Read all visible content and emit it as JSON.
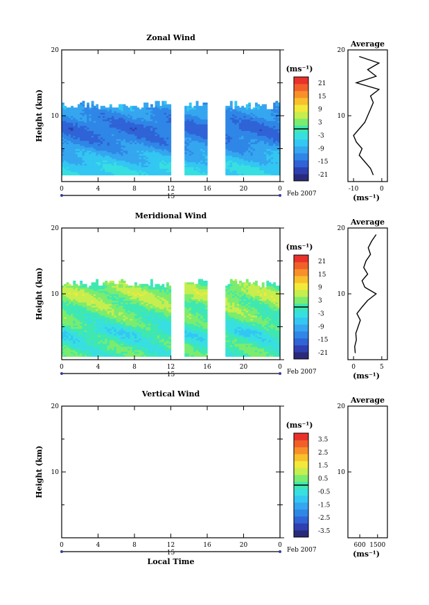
{
  "page": {
    "width": 619,
    "height": 873
  },
  "date_label": "Feb 2007",
  "day_label": "15",
  "xlabel": "Local Time",
  "ylabel": "Height (km)",
  "unit_label": "(ms⁻¹)",
  "profile_title": "Average",
  "palette": [
    "#2a2a7a",
    "#2e3fb0",
    "#2f63d6",
    "#2f86e6",
    "#35a6ef",
    "#33c7f2",
    "#38dfe0",
    "#3fe8b0",
    "#7bec6e",
    "#c6ee4e",
    "#f3e93a",
    "#f8c02c",
    "#f7902a",
    "#f2602a",
    "#e8322a"
  ],
  "chart_data": [
    {
      "type": "heatmap",
      "title": "Zonal Wind",
      "x_ticks": [
        "0",
        "4",
        "8",
        "12",
        "16",
        "20",
        "0"
      ],
      "xlim": [
        0,
        24
      ],
      "ylim": [
        0,
        20
      ],
      "y_ticks": [
        "10",
        "20"
      ],
      "colorbar": {
        "ticks": [
          "21",
          "15",
          "9",
          "3",
          "-3",
          "-9",
          "-15",
          "-21"
        ],
        "range": [
          -24,
          24
        ]
      },
      "data_gaps_hours": [
        [
          12,
          13.5
        ],
        [
          16,
          18
        ]
      ],
      "field": {
        "base_km": 1.0,
        "top_km": 11.5,
        "profile_km": [
          2,
          4,
          6,
          8,
          10,
          11.5
        ],
        "profile_value": [
          -5,
          -9,
          -13,
          -15,
          -12,
          -9
        ],
        "variability": 2
      },
      "profile": {
        "xlim": [
          -12,
          2
        ],
        "x_ticks": [
          "-10",
          "0"
        ],
        "ylim": [
          0,
          20
        ],
        "y_ticks": [
          "10",
          "20"
        ],
        "height_km": [
          1,
          2,
          3,
          4,
          5,
          6,
          7,
          8,
          9,
          10,
          11,
          12,
          13,
          14,
          15,
          16,
          17,
          18,
          19
        ],
        "values": [
          -3,
          -4,
          -6,
          -8,
          -7,
          -9,
          -10,
          -8,
          -6,
          -5,
          -4,
          -3,
          -4,
          -1,
          -9,
          -2,
          -5,
          -1,
          -8
        ]
      }
    },
    {
      "type": "heatmap",
      "title": "Meridional Wind",
      "x_ticks": [
        "0",
        "4",
        "8",
        "12",
        "16",
        "20",
        "0"
      ],
      "xlim": [
        0,
        24
      ],
      "ylim": [
        0,
        20
      ],
      "y_ticks": [
        "10",
        "20"
      ],
      "colorbar": {
        "ticks": [
          "21",
          "15",
          "9",
          "3",
          "-3",
          "-9",
          "-15",
          "-21"
        ],
        "range": [
          -24,
          24
        ]
      },
      "data_gaps_hours": [
        [
          12,
          13.5
        ],
        [
          16,
          18
        ]
      ],
      "field": {
        "base_km": 0.5,
        "top_km": 11.5,
        "profile_km": [
          2,
          4,
          6,
          8,
          10,
          11.5
        ],
        "profile_value": [
          0,
          -3,
          1,
          3,
          5,
          2
        ],
        "variability": 3
      },
      "profile": {
        "xlim": [
          -1,
          6
        ],
        "x_ticks": [
          "0",
          "5"
        ],
        "ylim": [
          0,
          20
        ],
        "y_ticks": [
          "10",
          "20"
        ],
        "height_km": [
          1,
          2,
          3,
          4,
          5,
          6,
          7,
          8,
          9,
          10,
          11,
          12,
          13,
          14,
          15,
          16,
          17,
          18,
          19
        ],
        "values": [
          0.3,
          0.2,
          0.5,
          0.4,
          0.8,
          1.2,
          0.6,
          1.5,
          2.5,
          4,
          2,
          1.5,
          2.5,
          1.8,
          2.2,
          3,
          2.6,
          3.2,
          4
        ]
      }
    },
    {
      "type": "heatmap",
      "title": "Vertical Wind",
      "x_ticks": [
        "0",
        "4",
        "8",
        "12",
        "16",
        "20",
        "0"
      ],
      "xlim": [
        0,
        24
      ],
      "ylim": [
        0,
        20
      ],
      "y_ticks": [
        "10",
        "20"
      ],
      "colorbar": {
        "ticks": [
          "3.5",
          "2.5",
          "1.5",
          "0.5",
          "-0.5",
          "-1.5",
          "-2.5",
          "-3.5"
        ],
        "range": [
          -4,
          4
        ]
      },
      "data_gaps_hours": [],
      "field": null,
      "profile": {
        "xlim": [
          0,
          2000
        ],
        "x_ticks": [
          "600",
          "1500"
        ],
        "ylim": [
          0,
          20
        ],
        "y_ticks": [
          "10",
          "20"
        ],
        "height_km": [],
        "values": []
      }
    }
  ]
}
